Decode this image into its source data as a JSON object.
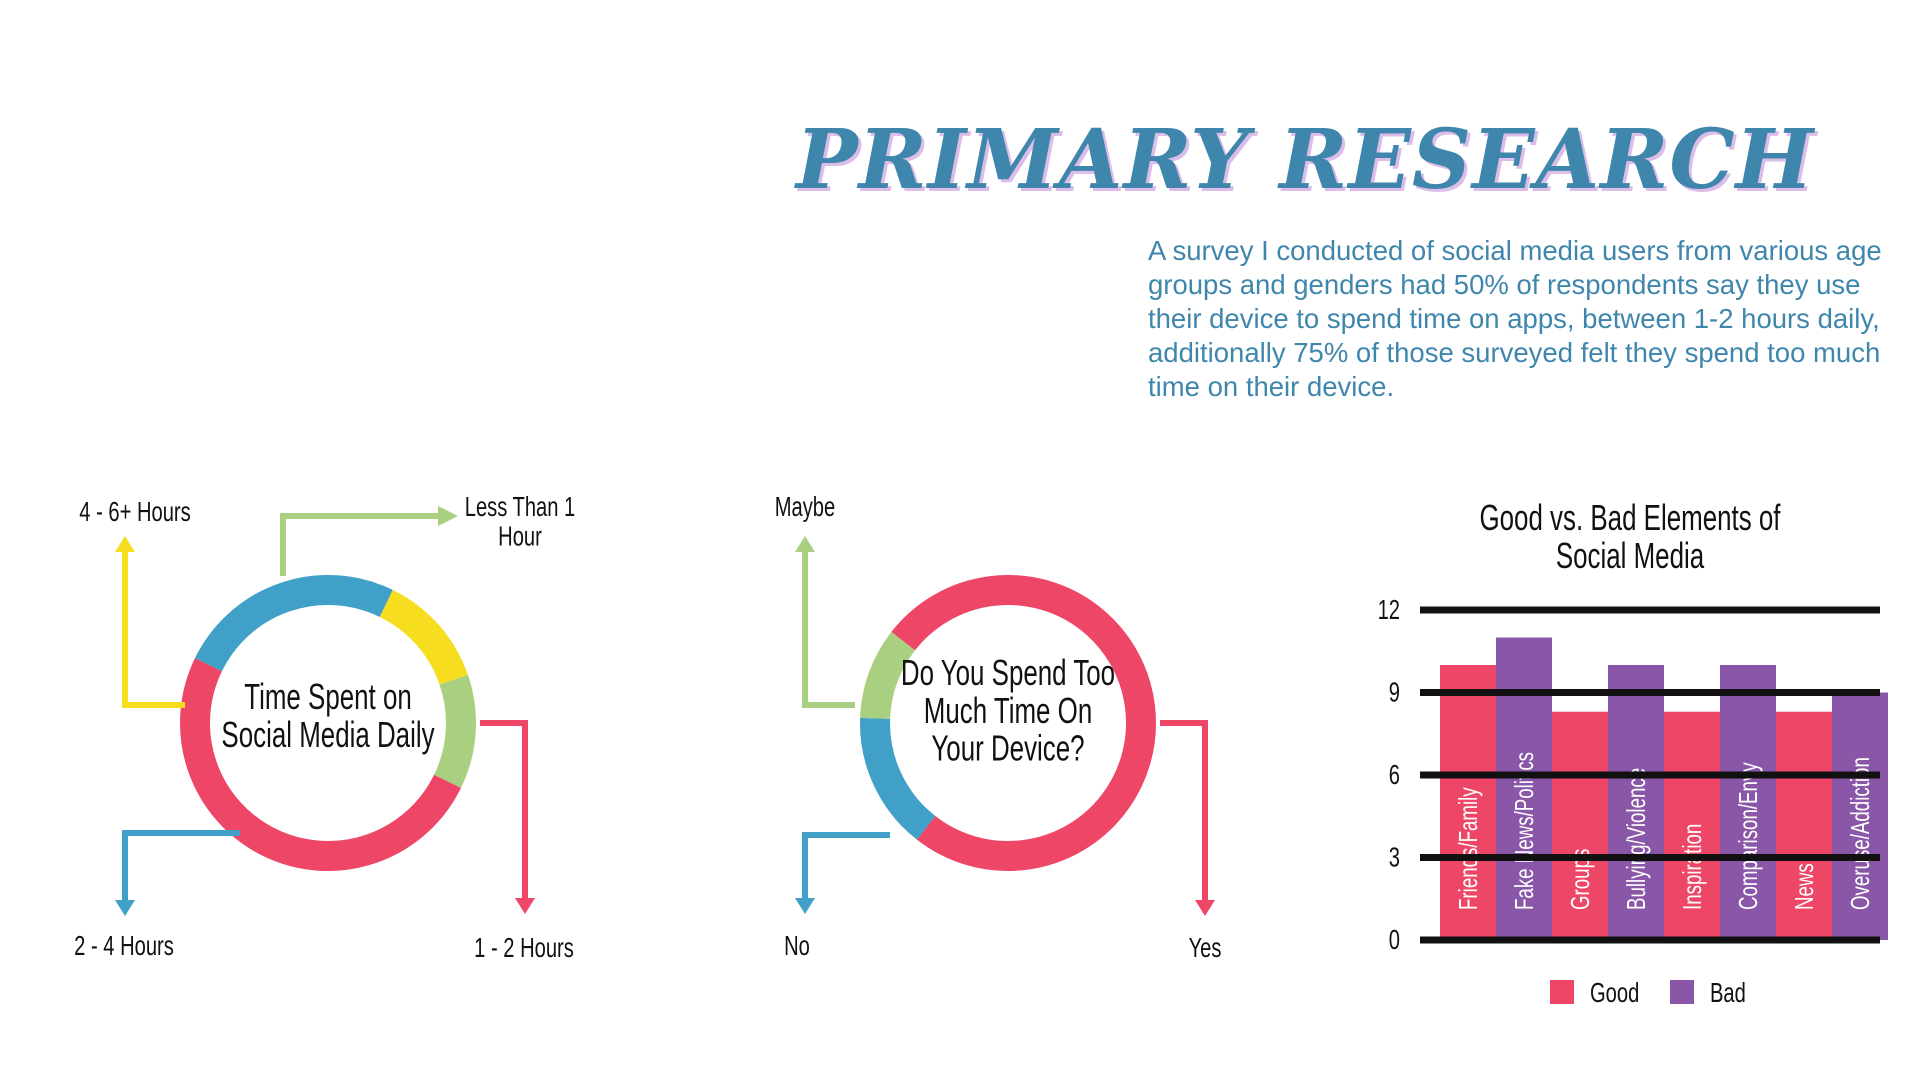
{
  "header": {
    "title": "PRIMARY RESEARCH",
    "description": "A survey I conducted of social media users from various age groups and genders had 50% of respondents say they use their device to spend time on apps, between 1-2 hours daily, additionally 75% of those surveyed felt they spend too much time on their device."
  },
  "colors": {
    "text": "#3f86ad",
    "pink": "#ee4667",
    "blue": "#40a0c8",
    "yellow": "#f7dd20",
    "green": "#a8d080",
    "purple": "#8a57a8",
    "dark": "#111111"
  },
  "chart_data": [
    {
      "type": "pie",
      "title": "Time Spent on Social Media Daily",
      "title_lines": [
        "Time Spent on",
        "Social Media Daily"
      ],
      "slices": [
        {
          "label": "1 - 2 Hours",
          "value": 50,
          "color": "#ee4667"
        },
        {
          "label": "2 - 4 Hours",
          "value": 25,
          "color": "#40a0c8"
        },
        {
          "label": "4 - 6+ Hours",
          "value": 12.5,
          "color": "#f7dd20"
        },
        {
          "label": "Less Than 1 Hour",
          "value": 12.5,
          "color": "#a8d080"
        }
      ],
      "label_lines": {
        "1 - 2 Hours": [
          "1 - 2 Hours"
        ],
        "2 - 4 Hours": [
          "2 - 4 Hours"
        ],
        "4 - 6+ Hours": [
          "4 - 6+ Hours"
        ],
        "Less Than 1 Hour": [
          "Less Than 1",
          "Hour"
        ]
      }
    },
    {
      "type": "pie",
      "title": "Do You Spend Too Much Time On Your Device?",
      "title_lines": [
        "Do You Spend Too",
        "Much Time On",
        "Your Device?"
      ],
      "slices": [
        {
          "label": "Yes",
          "value": 75,
          "color": "#ee4667"
        },
        {
          "label": "No",
          "value": 15,
          "color": "#40a0c8"
        },
        {
          "label": "Maybe",
          "value": 10,
          "color": "#a8d080"
        }
      ]
    },
    {
      "type": "bar",
      "title": "Good vs. Bad Elements of Social Media",
      "title_lines": [
        "Good vs. Bad Elements of",
        "Social Media"
      ],
      "categories": [
        "Friends/Family",
        "Fake News/Politics",
        "Groups",
        "Bullying/Violence",
        "Inspiration",
        "Comparison/Envy",
        "News",
        "Overuse/Addiction"
      ],
      "values": [
        10,
        11,
        8.3,
        10,
        8.3,
        10,
        8.3,
        9
      ],
      "group": [
        "Good",
        "Bad",
        "Good",
        "Bad",
        "Good",
        "Bad",
        "Good",
        "Bad"
      ],
      "series": [
        {
          "name": "Good",
          "color": "#ee4667"
        },
        {
          "name": "Bad",
          "color": "#8a57a8"
        }
      ],
      "yticks": [
        0,
        3,
        6,
        9,
        12
      ],
      "ylim": [
        0,
        12
      ],
      "grid": true,
      "legend": "bottom"
    }
  ]
}
